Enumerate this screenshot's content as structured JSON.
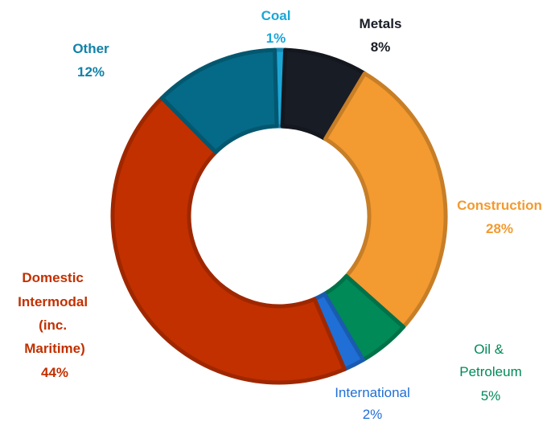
{
  "chart_data": {
    "type": "pie",
    "title": "",
    "slices": [
      {
        "label": "Coal",
        "value": 1,
        "value_label": "1%",
        "color": "#1BA6D6",
        "text_color": "#1BA6D6",
        "bold": true
      },
      {
        "label": "Metals",
        "value": 8,
        "value_label": "8%",
        "color": "#181C25",
        "text_color": "#181C25",
        "bold": true
      },
      {
        "label": "Construction",
        "value": 28,
        "value_label": "28%",
        "color": "#F39A30",
        "text_color": "#F39A30",
        "bold": true
      },
      {
        "label": "Oil & Petroleum",
        "value": 5,
        "value_label": "5%",
        "color": "#008A58",
        "text_color": "#008A58",
        "bold": false
      },
      {
        "label": "International",
        "value": 2,
        "value_label": "2%",
        "color": "#1F6FD6",
        "text_color": "#1F6FD6",
        "bold": false
      },
      {
        "label": "Domestic Intermodal (inc. Maritime)",
        "value": 44,
        "value_label": "44%",
        "color": "#C23000",
        "text_color": "#C23000",
        "bold": true
      },
      {
        "label": "Other",
        "value": 12,
        "value_label": "12%",
        "color": "#046A87",
        "text_color": "#1182A8",
        "bold": true
      }
    ]
  }
}
